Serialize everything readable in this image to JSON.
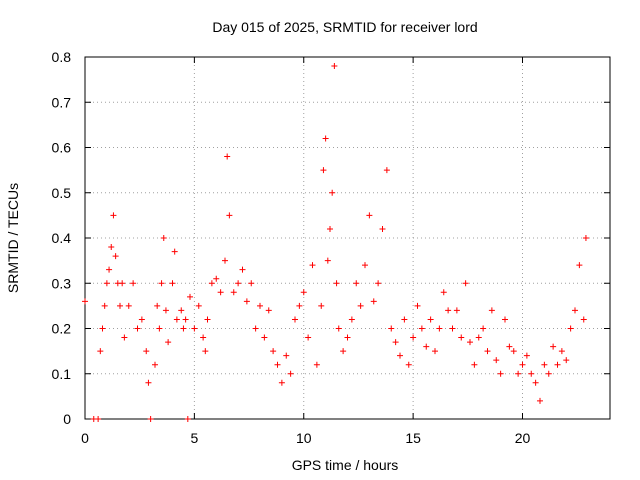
{
  "chart_data": {
    "type": "scatter",
    "title": "Day 015 of 2025, SRMTID for receiver lord",
    "xlabel": "GPS time / hours",
    "ylabel": "SRMTID / TECUs",
    "xlim": [
      0,
      24
    ],
    "ylim": [
      0,
      0.8
    ],
    "xticks": [
      "0",
      "5",
      "10",
      "15",
      "20"
    ],
    "yticks": [
      "0",
      "0.1",
      "0.2",
      "0.3",
      "0.4",
      "0.5",
      "0.6",
      "0.7",
      "0.8"
    ],
    "grid": true,
    "marker": "plus",
    "series_color": "#ff0000",
    "series": [
      {
        "name": "SRMTID",
        "points": [
          [
            0.0,
            0.26
          ],
          [
            0.4,
            0.0
          ],
          [
            0.6,
            0.0
          ],
          [
            0.7,
            0.15
          ],
          [
            0.8,
            0.2
          ],
          [
            0.9,
            0.25
          ],
          [
            1.0,
            0.3
          ],
          [
            1.1,
            0.33
          ],
          [
            1.2,
            0.38
          ],
          [
            1.3,
            0.45
          ],
          [
            1.4,
            0.36
          ],
          [
            1.5,
            0.3
          ],
          [
            1.6,
            0.25
          ],
          [
            1.7,
            0.3
          ],
          [
            1.8,
            0.18
          ],
          [
            2.0,
            0.25
          ],
          [
            2.2,
            0.3
          ],
          [
            2.4,
            0.2
          ],
          [
            2.6,
            0.22
          ],
          [
            2.8,
            0.15
          ],
          [
            2.9,
            0.08
          ],
          [
            3.0,
            0.0
          ],
          [
            3.2,
            0.12
          ],
          [
            3.3,
            0.25
          ],
          [
            3.4,
            0.2
          ],
          [
            3.5,
            0.3
          ],
          [
            3.6,
            0.4
          ],
          [
            3.7,
            0.24
          ],
          [
            3.8,
            0.17
          ],
          [
            4.0,
            0.3
          ],
          [
            4.1,
            0.37
          ],
          [
            4.2,
            0.22
          ],
          [
            4.4,
            0.24
          ],
          [
            4.5,
            0.2
          ],
          [
            4.6,
            0.22
          ],
          [
            4.7,
            0.0
          ],
          [
            4.8,
            0.27
          ],
          [
            5.0,
            0.2
          ],
          [
            5.2,
            0.25
          ],
          [
            5.4,
            0.18
          ],
          [
            5.5,
            0.15
          ],
          [
            5.6,
            0.22
          ],
          [
            5.8,
            0.3
          ],
          [
            6.0,
            0.31
          ],
          [
            6.2,
            0.28
          ],
          [
            6.4,
            0.35
          ],
          [
            6.5,
            0.58
          ],
          [
            6.6,
            0.45
          ],
          [
            6.8,
            0.28
          ],
          [
            7.0,
            0.3
          ],
          [
            7.2,
            0.33
          ],
          [
            7.4,
            0.26
          ],
          [
            7.6,
            0.3
          ],
          [
            7.8,
            0.2
          ],
          [
            8.0,
            0.25
          ],
          [
            8.2,
            0.18
          ],
          [
            8.4,
            0.24
          ],
          [
            8.6,
            0.15
          ],
          [
            8.8,
            0.12
          ],
          [
            9.0,
            0.08
          ],
          [
            9.2,
            0.14
          ],
          [
            9.4,
            0.1
          ],
          [
            9.6,
            0.22
          ],
          [
            9.8,
            0.25
          ],
          [
            10.0,
            0.28
          ],
          [
            10.2,
            0.18
          ],
          [
            10.4,
            0.34
          ],
          [
            10.6,
            0.12
          ],
          [
            10.8,
            0.25
          ],
          [
            10.9,
            0.55
          ],
          [
            11.0,
            0.62
          ],
          [
            11.1,
            0.35
          ],
          [
            11.2,
            0.42
          ],
          [
            11.3,
            0.5
          ],
          [
            11.4,
            0.78
          ],
          [
            11.5,
            0.3
          ],
          [
            11.6,
            0.2
          ],
          [
            11.8,
            0.15
          ],
          [
            12.0,
            0.18
          ],
          [
            12.2,
            0.22
          ],
          [
            12.4,
            0.3
          ],
          [
            12.6,
            0.25
          ],
          [
            12.8,
            0.34
          ],
          [
            13.0,
            0.45
          ],
          [
            13.2,
            0.26
          ],
          [
            13.4,
            0.3
          ],
          [
            13.6,
            0.42
          ],
          [
            13.8,
            0.55
          ],
          [
            14.0,
            0.2
          ],
          [
            14.2,
            0.17
          ],
          [
            14.4,
            0.14
          ],
          [
            14.6,
            0.22
          ],
          [
            14.8,
            0.12
          ],
          [
            15.0,
            0.18
          ],
          [
            15.2,
            0.25
          ],
          [
            15.4,
            0.2
          ],
          [
            15.6,
            0.16
          ],
          [
            15.8,
            0.22
          ],
          [
            16.0,
            0.15
          ],
          [
            16.2,
            0.2
          ],
          [
            16.4,
            0.28
          ],
          [
            16.6,
            0.24
          ],
          [
            16.8,
            0.2
          ],
          [
            17.0,
            0.24
          ],
          [
            17.2,
            0.18
          ],
          [
            17.4,
            0.3
          ],
          [
            17.6,
            0.17
          ],
          [
            17.8,
            0.12
          ],
          [
            18.0,
            0.18
          ],
          [
            18.2,
            0.2
          ],
          [
            18.4,
            0.15
          ],
          [
            18.6,
            0.24
          ],
          [
            18.8,
            0.13
          ],
          [
            19.0,
            0.1
          ],
          [
            19.2,
            0.22
          ],
          [
            19.4,
            0.16
          ],
          [
            19.6,
            0.15
          ],
          [
            19.8,
            0.1
          ],
          [
            20.0,
            0.12
          ],
          [
            20.2,
            0.14
          ],
          [
            20.4,
            0.1
          ],
          [
            20.6,
            0.08
          ],
          [
            20.8,
            0.04
          ],
          [
            21.0,
            0.12
          ],
          [
            21.2,
            0.1
          ],
          [
            21.4,
            0.16
          ],
          [
            21.6,
            0.12
          ],
          [
            21.8,
            0.15
          ],
          [
            22.0,
            0.13
          ],
          [
            22.2,
            0.2
          ],
          [
            22.4,
            0.24
          ],
          [
            22.6,
            0.34
          ],
          [
            22.8,
            0.22
          ],
          [
            22.9,
            0.4
          ]
        ]
      }
    ]
  }
}
